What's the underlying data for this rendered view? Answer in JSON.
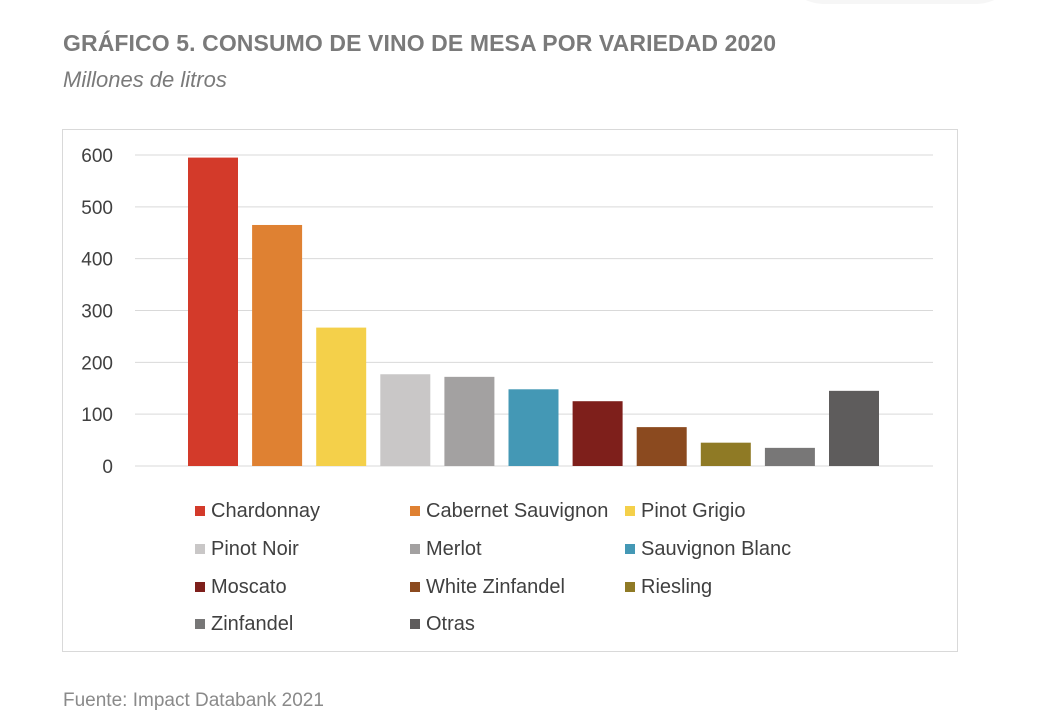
{
  "title": "GRÁFICO 5. CONSUMO DE VINO DE MESA POR VARIEDAD 2020",
  "subtitle": "Millones de litros",
  "source": "Fuente: Impact Databank 2021",
  "chart_data": {
    "type": "bar",
    "title": "GRÁFICO 5. CONSUMO DE VINO DE MESA POR VARIEDAD 2020",
    "subtitle": "Millones de litros",
    "ylabel": "",
    "xlabel": "",
    "ylim": [
      0,
      600
    ],
    "yticks": [
      "0",
      "100",
      "200",
      "300",
      "400",
      "500",
      "600"
    ],
    "grid": "horizontal",
    "legend_position": "bottom",
    "categories": [
      "Chardonnay",
      "Cabernet Sauvignon",
      "Pinot Grigio",
      "Pinot Noir",
      "Merlot",
      "Sauvignon Blanc",
      "Moscato",
      "White Zinfandel",
      "Riesling",
      "Zinfandel",
      "Otras"
    ],
    "values": [
      595,
      465,
      267,
      177,
      172,
      148,
      125,
      75,
      45,
      35,
      145
    ],
    "colors": [
      "#d33a2a",
      "#df8132",
      "#f4d04a",
      "#c9c7c7",
      "#a3a1a1",
      "#4498b5",
      "#7e1f1b",
      "#8b4a1f",
      "#8f7a25",
      "#787777",
      "#5e5c5c"
    ]
  }
}
